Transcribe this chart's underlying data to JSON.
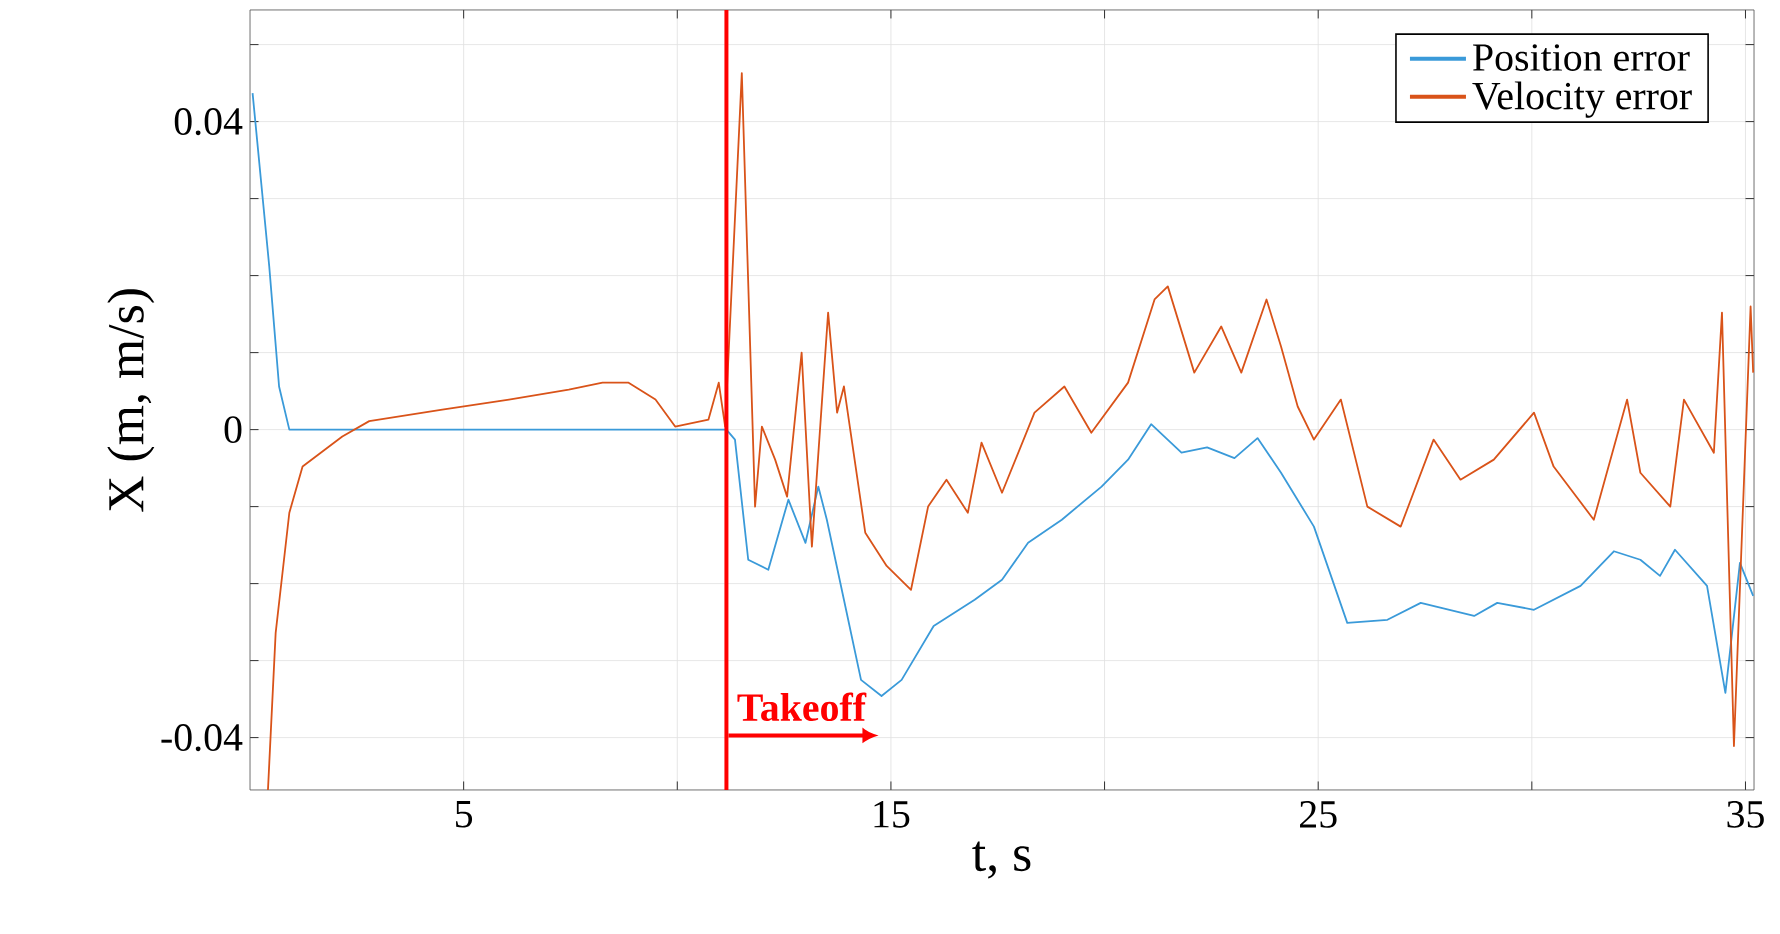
{
  "chart_data": {
    "type": "line",
    "xlabel": "t, s",
    "ylabel": "X (m, m/s)",
    "xlim": [
      0,
      35.2
    ],
    "ylim": [
      -0.0468,
      0.0545
    ],
    "xticks": [
      5,
      {
        "value": 10,
        "label": null
      },
      15,
      {
        "value": 20,
        "label": null
      },
      25,
      {
        "value": 30,
        "label": null
      },
      35
    ],
    "yticks": [
      -0.04,
      {
        "value": -0.03,
        "label": null
      },
      {
        "value": -0.02,
        "label": null
      },
      {
        "value": -0.01,
        "label": null
      },
      0,
      {
        "value": 0.01,
        "label": null
      },
      {
        "value": 0.02,
        "label": null
      },
      {
        "value": 0.03,
        "label": null
      },
      0.04,
      {
        "value": 0.05,
        "label": null
      }
    ],
    "grid": true,
    "legend": "top right",
    "ref_lines": [
      {
        "axis": "x",
        "value": 11.15,
        "color": "#ff0000"
      }
    ],
    "annotations": [
      {
        "text": "**Takeoff**",
        "x": 11.15,
        "y": -0.036
      }
    ],
    "series": [
      {
        "name": "Position error",
        "color": "#3a9ad9",
        "x": [
          0.06,
          0.45,
          0.68,
          0.92,
          11.15,
          11.35,
          11.66,
          12.13,
          12.6,
          13.0,
          13.3,
          13.5,
          13.9,
          14.3,
          14.78,
          15.25,
          16.0,
          16.96,
          17.6,
          18.21,
          19.0,
          19.93,
          20.55,
          21.09,
          21.8,
          22.4,
          23.04,
          23.58,
          24.13,
          24.9,
          25.68,
          26.62,
          27.4,
          28.65,
          29.19,
          30.05,
          31.14,
          31.92,
          32.54,
          33.0,
          33.35,
          34.1,
          34.53,
          34.87,
          35.18
        ],
        "values": [
          0.0437,
          0.0212,
          0.0056,
          0,
          0,
          -0.0013,
          -0.0169,
          -0.0182,
          -0.0091,
          -0.0147,
          -0.0074,
          -0.0117,
          -0.0221,
          -0.0325,
          -0.0346,
          -0.0325,
          -0.0255,
          -0.0221,
          -0.0195,
          -0.0147,
          -0.0117,
          -0.0074,
          -0.0039,
          0.0007,
          -0.003,
          -0.0023,
          -0.0037,
          -0.0011,
          -0.0056,
          -0.0126,
          -0.0251,
          -0.0247,
          -0.0225,
          -0.0242,
          -0.0225,
          -0.0234,
          -0.0203,
          -0.0158,
          -0.0169,
          -0.019,
          -0.0156,
          -0.0203,
          -0.0342,
          -0.0173,
          -0.0216
        ]
      },
      {
        "name": "Velocity error",
        "color": "#d95319",
        "x": [
          0.42,
          0.6,
          0.92,
          1.23,
          2.16,
          2.79,
          4.5,
          6.06,
          7.46,
          8.25,
          8.86,
          9.49,
          9.95,
          10.73,
          10.97,
          11.12,
          11.51,
          11.82,
          11.98,
          12.29,
          12.57,
          12.91,
          13.15,
          13.53,
          13.74,
          13.9,
          14.4,
          14.9,
          15.47,
          15.87,
          16.3,
          16.8,
          17.12,
          17.6,
          18.36,
          19.06,
          19.69,
          20.55,
          21.17,
          21.48,
          22.1,
          22.73,
          23.2,
          23.79,
          24.13,
          24.52,
          24.9,
          25.53,
          26.15,
          26.93,
          27.7,
          28.33,
          29.11,
          30.05,
          30.51,
          31.45,
          32.23,
          32.54,
          33.24,
          33.56,
          34.26,
          34.45,
          34.73,
          35.12,
          35.18
        ],
        "values": [
          -0.0468,
          -0.0264,
          -0.0108,
          -0.0048,
          -0.0009,
          0.0011,
          0.0026,
          0.0039,
          0.0052,
          0.0061,
          0.0061,
          0.0039,
          0.0004,
          0.0013,
          0.0061,
          0.0004,
          0.0463,
          -0.01,
          0.0004,
          -0.0039,
          -0.0087,
          0.01,
          -0.0152,
          0.0152,
          0.0022,
          0.0056,
          -0.0134,
          -0.0177,
          -0.0208,
          -0.01,
          -0.0065,
          -0.0108,
          -0.0017,
          -0.0082,
          0.0022,
          0.0056,
          -0.0004,
          0.0061,
          0.0169,
          0.0186,
          0.0074,
          0.0134,
          0.0074,
          0.0169,
          0.0108,
          0.003,
          -0.0013,
          0.0039,
          -0.01,
          -0.0126,
          -0.0013,
          -0.0065,
          -0.0039,
          0.0022,
          -0.0048,
          -0.0117,
          0.0039,
          -0.0056,
          -0.01,
          0.0039,
          -0.003,
          0.0152,
          -0.0411,
          0.016,
          0.0074
        ]
      }
    ]
  }
}
